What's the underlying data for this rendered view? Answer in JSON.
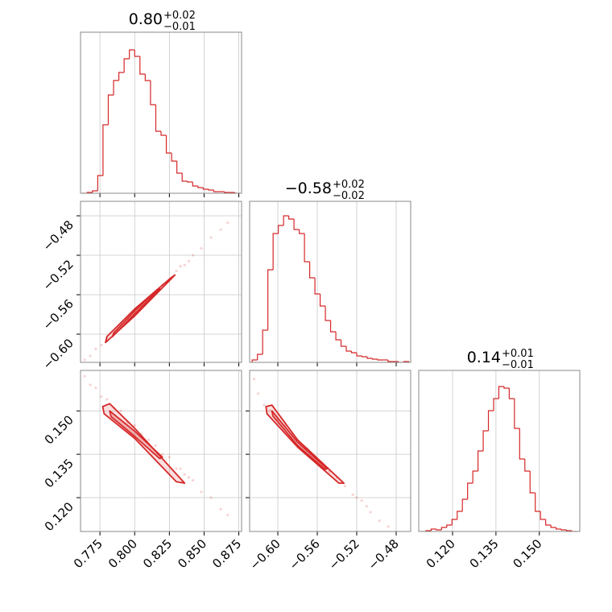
{
  "chart_data": {
    "type": "corner",
    "color": "#d62728",
    "grid": true,
    "hist_ylim": [
      0,
      200
    ],
    "parameters": [
      {
        "title": "0.80",
        "title_upper": "+0.02",
        "title_lower": "−0.01",
        "lim": [
          0.761,
          0.877
        ],
        "ticks": [
          0.775,
          {
            "value": 0.8,
            "label": "0.800"
          },
          0.825,
          {
            "value": 0.85,
            "label": "0.850"
          },
          0.875
        ]
      },
      {
        "title": "−0.58",
        "title_upper": "+0.02",
        "title_lower": "−0.02",
        "lim": [
          -0.6286,
          -0.4653
        ],
        "ticks": [
          {
            "value": -0.6,
            "label": "−0.60"
          },
          {
            "value": -0.56,
            "label": "−0.56"
          },
          {
            "value": -0.52,
            "label": "−0.52"
          },
          {
            "value": -0.48,
            "label": "−0.48"
          }
        ]
      },
      {
        "title": "0.14",
        "title_upper": "+0.01",
        "title_lower": "−0.01",
        "lim": [
          0.1083,
          0.164
        ],
        "ticks": [
          {
            "value": 0.12,
            "label": "0.120"
          },
          0.135,
          {
            "value": 0.15,
            "label": "0.150"
          }
        ]
      }
    ],
    "histograms": [
      {
        "bins": [
          0.762,
          0.7658,
          0.7696,
          0.7734,
          0.7772,
          0.781,
          0.7848,
          0.7886,
          0.7924,
          0.7962,
          0.8,
          0.8038,
          0.8076,
          0.8114,
          0.8152,
          0.819,
          0.8228,
          0.8266,
          0.8304,
          0.8342,
          0.838,
          0.8418,
          0.8456,
          0.8494,
          0.8532,
          0.857,
          0.8608,
          0.8646,
          0.8684,
          0.8722,
          0.876
        ],
        "counts": [
          0,
          1,
          3,
          22,
          85,
          122,
          140,
          150,
          167,
          178,
          170,
          148,
          140,
          110,
          77,
          72,
          50,
          40,
          25,
          15,
          14,
          9,
          7,
          5,
          4,
          2,
          2,
          1,
          1,
          0
        ]
      },
      {
        "bins": [
          -0.626,
          -0.6207,
          -0.6154,
          -0.6101,
          -0.6048,
          -0.5995,
          -0.5942,
          -0.5889,
          -0.5836,
          -0.5783,
          -0.573,
          -0.5677,
          -0.5624,
          -0.5571,
          -0.5518,
          -0.5465,
          -0.5412,
          -0.5359,
          -0.5306,
          -0.5253,
          -0.52,
          -0.5147,
          -0.5094,
          -0.5041,
          -0.4988,
          -0.4935,
          -0.4882,
          -0.4829,
          -0.4776,
          -0.4723,
          -0.467
        ],
        "counts": [
          3,
          10,
          40,
          115,
          160,
          170,
          182,
          178,
          165,
          160,
          125,
          105,
          85,
          70,
          52,
          38,
          28,
          20,
          14,
          12,
          8,
          7,
          5,
          4,
          3,
          3,
          1,
          1,
          0,
          1
        ]
      },
      {
        "bins": [
          0.109,
          0.1108,
          0.1126,
          0.1144,
          0.1162,
          0.118,
          0.1198,
          0.1216,
          0.1234,
          0.1252,
          0.127,
          0.1288,
          0.1306,
          0.1324,
          0.1342,
          0.136,
          0.1378,
          0.1396,
          0.1414,
          0.1432,
          0.145,
          0.1468,
          0.1486,
          0.1504,
          0.1522,
          0.154,
          0.1558,
          0.1576,
          0.1594,
          0.1612,
          0.163
        ],
        "counts": [
          0,
          1,
          3,
          2,
          5,
          8,
          15,
          25,
          40,
          60,
          75,
          100,
          125,
          150,
          165,
          180,
          178,
          165,
          128,
          90,
          75,
          48,
          25,
          15,
          8,
          5,
          3,
          2,
          1,
          0
        ]
      }
    ],
    "pairs": [
      {
        "samples": {
          "x": [
            0.764,
            0.768,
            0.772,
            0.776,
            0.78,
            0.785,
            0.79,
            0.795,
            0.8,
            0.805,
            0.81,
            0.815,
            0.82,
            0.825,
            0.83,
            0.836,
            0.842,
            0.848,
            0.855,
            0.862,
            0.867,
            0.833,
            0.839
          ],
          "y": [
            -0.626,
            -0.622,
            -0.615,
            -0.611,
            -0.604,
            -0.599,
            -0.59,
            -0.585,
            -0.577,
            -0.572,
            -0.563,
            -0.558,
            -0.55,
            -0.545,
            -0.536,
            -0.53,
            -0.52,
            -0.513,
            -0.502,
            -0.494,
            -0.487,
            -0.531,
            -0.526
          ]
        },
        "contours": [
          {
            "x": [
              0.779,
              0.8,
              0.829,
              0.826,
              0.8,
              0.78
            ],
            "y": [
              -0.6085,
              -0.5815,
              -0.54,
              -0.543,
              -0.5745,
              -0.6025
            ]
          },
          {
            "x": [
              0.784,
              0.8,
              0.818,
              0.816,
              0.8,
              0.785
            ],
            "y": [
              -0.6025,
              -0.5795,
              -0.554,
              -0.555,
              -0.5765,
              -0.5985
            ]
          }
        ]
      },
      {
        "samples": {
          "x": [
            0.764,
            0.768,
            0.772,
            0.776,
            0.78,
            0.785,
            0.79,
            0.795,
            0.8,
            0.805,
            0.81,
            0.815,
            0.82,
            0.825,
            0.83,
            0.836,
            0.842,
            0.848,
            0.855,
            0.862,
            0.867,
            0.833,
            0.839
          ],
          "y": [
            0.162,
            0.159,
            0.158,
            0.155,
            0.154,
            0.151,
            0.15,
            0.146,
            0.145,
            0.142,
            0.14,
            0.138,
            0.135,
            0.134,
            0.13,
            0.128,
            0.126,
            0.122,
            0.12,
            0.116,
            0.114,
            0.13,
            0.127
          ]
        },
        "contours": [
          {
            "x": [
              0.777,
              0.782,
              0.8,
              0.836,
              0.83,
              0.8,
              0.778
            ],
            "y": [
              0.1515,
              0.1525,
              0.144,
              0.125,
              0.1255,
              0.1405,
              0.149
            ]
          },
          {
            "x": [
              0.782,
              0.8,
              0.82,
              0.818,
              0.8,
              0.783
            ],
            "y": [
              0.15,
              0.143,
              0.134,
              0.1335,
              0.1412,
              0.148
            ]
          }
        ]
      },
      {
        "samples": {
          "x": [
            -0.624,
            -0.62,
            -0.614,
            -0.608,
            -0.6,
            -0.592,
            -0.585,
            -0.578,
            -0.57,
            -0.562,
            -0.555,
            -0.548,
            -0.54,
            -0.532,
            -0.524,
            -0.515,
            -0.506,
            -0.497,
            -0.488,
            -0.52,
            -0.51
          ],
          "y": [
            0.161,
            0.156,
            0.152,
            0.15,
            0.147,
            0.145,
            0.142,
            0.139,
            0.137,
            0.134,
            0.132,
            0.129,
            0.127,
            0.124,
            0.121,
            0.119,
            0.115,
            0.112,
            0.11,
            0.12,
            0.117
          ]
        },
        "contours": [
          {
            "x": [
              -0.612,
              -0.606,
              -0.58,
              -0.533,
              -0.538,
              -0.58,
              -0.611
            ],
            "y": [
              0.1515,
              0.152,
              0.14,
              0.125,
              0.125,
              0.1375,
              0.149
            ]
          },
          {
            "x": [
              -0.606,
              -0.58,
              -0.55,
              -0.552,
              -0.58,
              -0.605
            ],
            "y": [
              0.15,
              0.1392,
              0.13,
              0.1298,
              0.138,
              0.1482
            ]
          }
        ]
      }
    ]
  }
}
